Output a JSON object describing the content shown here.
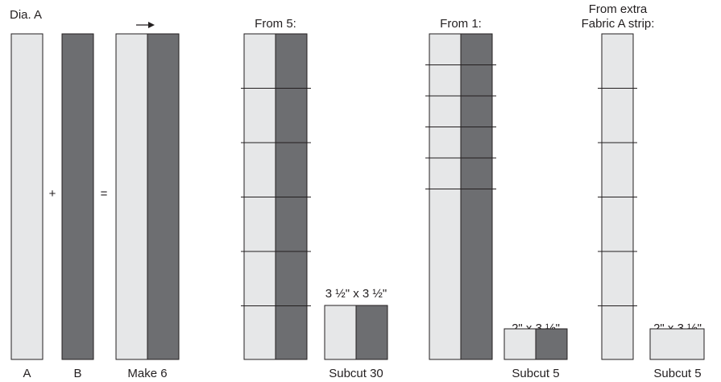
{
  "title": "Dia. A",
  "colors": {
    "fabric_a": "#e6e7e8",
    "fabric_b": "#6d6e71",
    "outline": "#231f20",
    "background": "#ffffff"
  },
  "symbols": {
    "plus": "+",
    "equals": "=",
    "arrow": "→"
  },
  "strips": {
    "a_label": "A",
    "b_label": "B",
    "result_label": "Make 6"
  },
  "groups": {
    "from5": {
      "heading": "From 5:",
      "segment_count": 6,
      "size_label": "3 ½\" x 3 ½\"",
      "count_label": "Subcut 30"
    },
    "from1": {
      "heading": "From 1:",
      "segment_count": 5,
      "size_label": "2\" x 3 ½\"",
      "count_label": "Subcut 5"
    },
    "fromA": {
      "heading_line1": "From extra",
      "heading_line2": "Fabric A strip:",
      "segment_count": 5,
      "size_label": "2\" x 3 ½\"",
      "count_label": "Subcut 5"
    }
  }
}
